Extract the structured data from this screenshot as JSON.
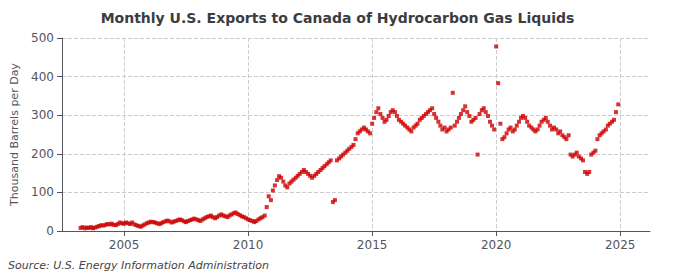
{
  "chart_data": {
    "type": "scatter",
    "title": "Monthly U.S. Exports to Canada of Hydrocarbon Gas Liquids",
    "ylabel": "Thousand Barrels per Day",
    "annotations": [
      "Source: U.S. Energy Information Administration"
    ],
    "color": "#cc0000",
    "marker": "square",
    "grid": true,
    "xlim": [
      2002.5,
      2026.2
    ],
    "xticks": [
      2005,
      2010,
      2015,
      2020,
      2025
    ],
    "ylim": [
      0,
      500
    ],
    "yticks": [
      0,
      100,
      200,
      300,
      400,
      500
    ],
    "x": [
      2003.25,
      2003.33,
      2003.42,
      2003.5,
      2003.58,
      2003.67,
      2003.75,
      2003.83,
      2003.92,
      2004,
      2004.08,
      2004.17,
      2004.25,
      2004.33,
      2004.42,
      2004.5,
      2004.58,
      2004.67,
      2004.75,
      2004.83,
      2004.92,
      2005,
      2005.08,
      2005.17,
      2005.25,
      2005.33,
      2005.42,
      2005.5,
      2005.58,
      2005.67,
      2005.75,
      2005.83,
      2005.92,
      2006,
      2006.08,
      2006.17,
      2006.25,
      2006.33,
      2006.42,
      2006.5,
      2006.58,
      2006.67,
      2006.75,
      2006.83,
      2006.92,
      2007,
      2007.08,
      2007.17,
      2007.25,
      2007.33,
      2007.42,
      2007.5,
      2007.58,
      2007.67,
      2007.75,
      2007.83,
      2007.92,
      2008,
      2008.08,
      2008.17,
      2008.25,
      2008.33,
      2008.42,
      2008.5,
      2008.58,
      2008.67,
      2008.75,
      2008.83,
      2008.92,
      2009,
      2009.08,
      2009.17,
      2009.25,
      2009.33,
      2009.42,
      2009.5,
      2009.58,
      2009.67,
      2009.75,
      2009.83,
      2009.92,
      2010,
      2010.08,
      2010.17,
      2010.25,
      2010.33,
      2010.42,
      2010.5,
      2010.58,
      2010.67,
      2010.75,
      2010.83,
      2010.92,
      2011,
      2011.08,
      2011.17,
      2011.25,
      2011.33,
      2011.42,
      2011.5,
      2011.58,
      2011.67,
      2011.75,
      2011.83,
      2011.92,
      2012,
      2012.08,
      2012.17,
      2012.25,
      2012.33,
      2012.42,
      2012.5,
      2012.58,
      2012.67,
      2012.75,
      2012.83,
      2012.92,
      2013,
      2013.08,
      2013.17,
      2013.25,
      2013.33,
      2013.42,
      2013.5,
      2013.58,
      2013.67,
      2013.75,
      2013.83,
      2013.92,
      2014,
      2014.08,
      2014.17,
      2014.25,
      2014.33,
      2014.42,
      2014.5,
      2014.58,
      2014.67,
      2014.75,
      2014.83,
      2014.92,
      2015,
      2015.08,
      2015.17,
      2015.25,
      2015.33,
      2015.42,
      2015.5,
      2015.58,
      2015.67,
      2015.75,
      2015.83,
      2015.92,
      2016,
      2016.08,
      2016.17,
      2016.25,
      2016.33,
      2016.42,
      2016.5,
      2016.58,
      2016.67,
      2016.75,
      2016.83,
      2016.92,
      2017,
      2017.08,
      2017.17,
      2017.25,
      2017.33,
      2017.42,
      2017.5,
      2017.58,
      2017.67,
      2017.75,
      2017.83,
      2017.92,
      2018,
      2018.08,
      2018.17,
      2018.25,
      2018.33,
      2018.42,
      2018.5,
      2018.58,
      2018.67,
      2018.75,
      2018.83,
      2018.92,
      2019,
      2019.08,
      2019.17,
      2019.25,
      2019.33,
      2019.42,
      2019.5,
      2019.58,
      2019.67,
      2019.75,
      2019.83,
      2019.92,
      2020,
      2020.08,
      2020.17,
      2020.25,
      2020.33,
      2020.42,
      2020.5,
      2020.58,
      2020.67,
      2020.75,
      2020.83,
      2020.92,
      2021,
      2021.08,
      2021.17,
      2021.25,
      2021.33,
      2021.42,
      2021.5,
      2021.58,
      2021.67,
      2021.75,
      2021.83,
      2021.92,
      2022,
      2022.08,
      2022.17,
      2022.25,
      2022.33,
      2022.42,
      2022.5,
      2022.58,
      2022.67,
      2022.75,
      2022.83,
      2022.92,
      2023,
      2023.08,
      2023.17,
      2023.25,
      2023.33,
      2023.42,
      2023.5,
      2023.58,
      2023.67,
      2023.75,
      2023.83,
      2023.92,
      2024,
      2024.08,
      2024.17,
      2024.25,
      2024.33,
      2024.42,
      2024.5,
      2024.58,
      2024.67,
      2024.75,
      2024.83,
      2024.92
    ],
    "values": [
      8,
      10,
      7,
      9,
      8,
      10,
      7,
      9,
      11,
      13,
      15,
      14,
      16,
      18,
      17,
      19,
      16,
      15,
      18,
      22,
      20,
      19,
      22,
      20,
      18,
      22,
      17,
      15,
      13,
      11,
      14,
      17,
      20,
      22,
      24,
      23,
      22,
      20,
      18,
      20,
      23,
      25,
      27,
      25,
      22,
      24,
      26,
      28,
      30,
      28,
      25,
      23,
      26,
      28,
      30,
      32,
      30,
      28,
      26,
      30,
      33,
      36,
      38,
      40,
      36,
      33,
      36,
      40,
      43,
      40,
      38,
      36,
      40,
      43,
      46,
      48,
      44,
      41,
      38,
      36,
      33,
      30,
      28,
      26,
      23,
      26,
      30,
      33,
      36,
      40,
      62,
      90,
      80,
      105,
      118,
      132,
      142,
      138,
      128,
      118,
      113,
      123,
      128,
      133,
      138,
      143,
      148,
      153,
      158,
      153,
      148,
      143,
      138,
      143,
      148,
      153,
      158,
      163,
      168,
      173,
      178,
      183,
      75,
      80,
      183,
      188,
      193,
      198,
      203,
      208,
      213,
      218,
      223,
      238,
      253,
      258,
      263,
      268,
      263,
      258,
      253,
      278,
      293,
      308,
      318,
      303,
      293,
      283,
      288,
      298,
      308,
      313,
      308,
      298,
      288,
      283,
      278,
      273,
      268,
      263,
      258,
      268,
      273,
      278,
      288,
      293,
      298,
      303,
      308,
      313,
      318,
      303,
      293,
      283,
      273,
      263,
      268,
      258,
      263,
      268,
      358,
      273,
      283,
      293,
      303,
      313,
      323,
      308,
      298,
      283,
      288,
      293,
      198,
      303,
      313,
      318,
      308,
      298,
      283,
      273,
      263,
      478,
      383,
      278,
      238,
      243,
      253,
      263,
      268,
      258,
      263,
      273,
      283,
      293,
      298,
      293,
      283,
      273,
      268,
      263,
      258,
      263,
      273,
      283,
      288,
      293,
      283,
      273,
      263,
      268,
      263,
      253,
      258,
      248,
      243,
      238,
      248,
      198,
      193,
      198,
      203,
      193,
      188,
      183,
      153,
      148,
      153,
      198,
      203,
      208,
      238,
      248,
      253,
      258,
      263,
      273,
      278,
      283,
      288,
      308,
      328
    ]
  }
}
